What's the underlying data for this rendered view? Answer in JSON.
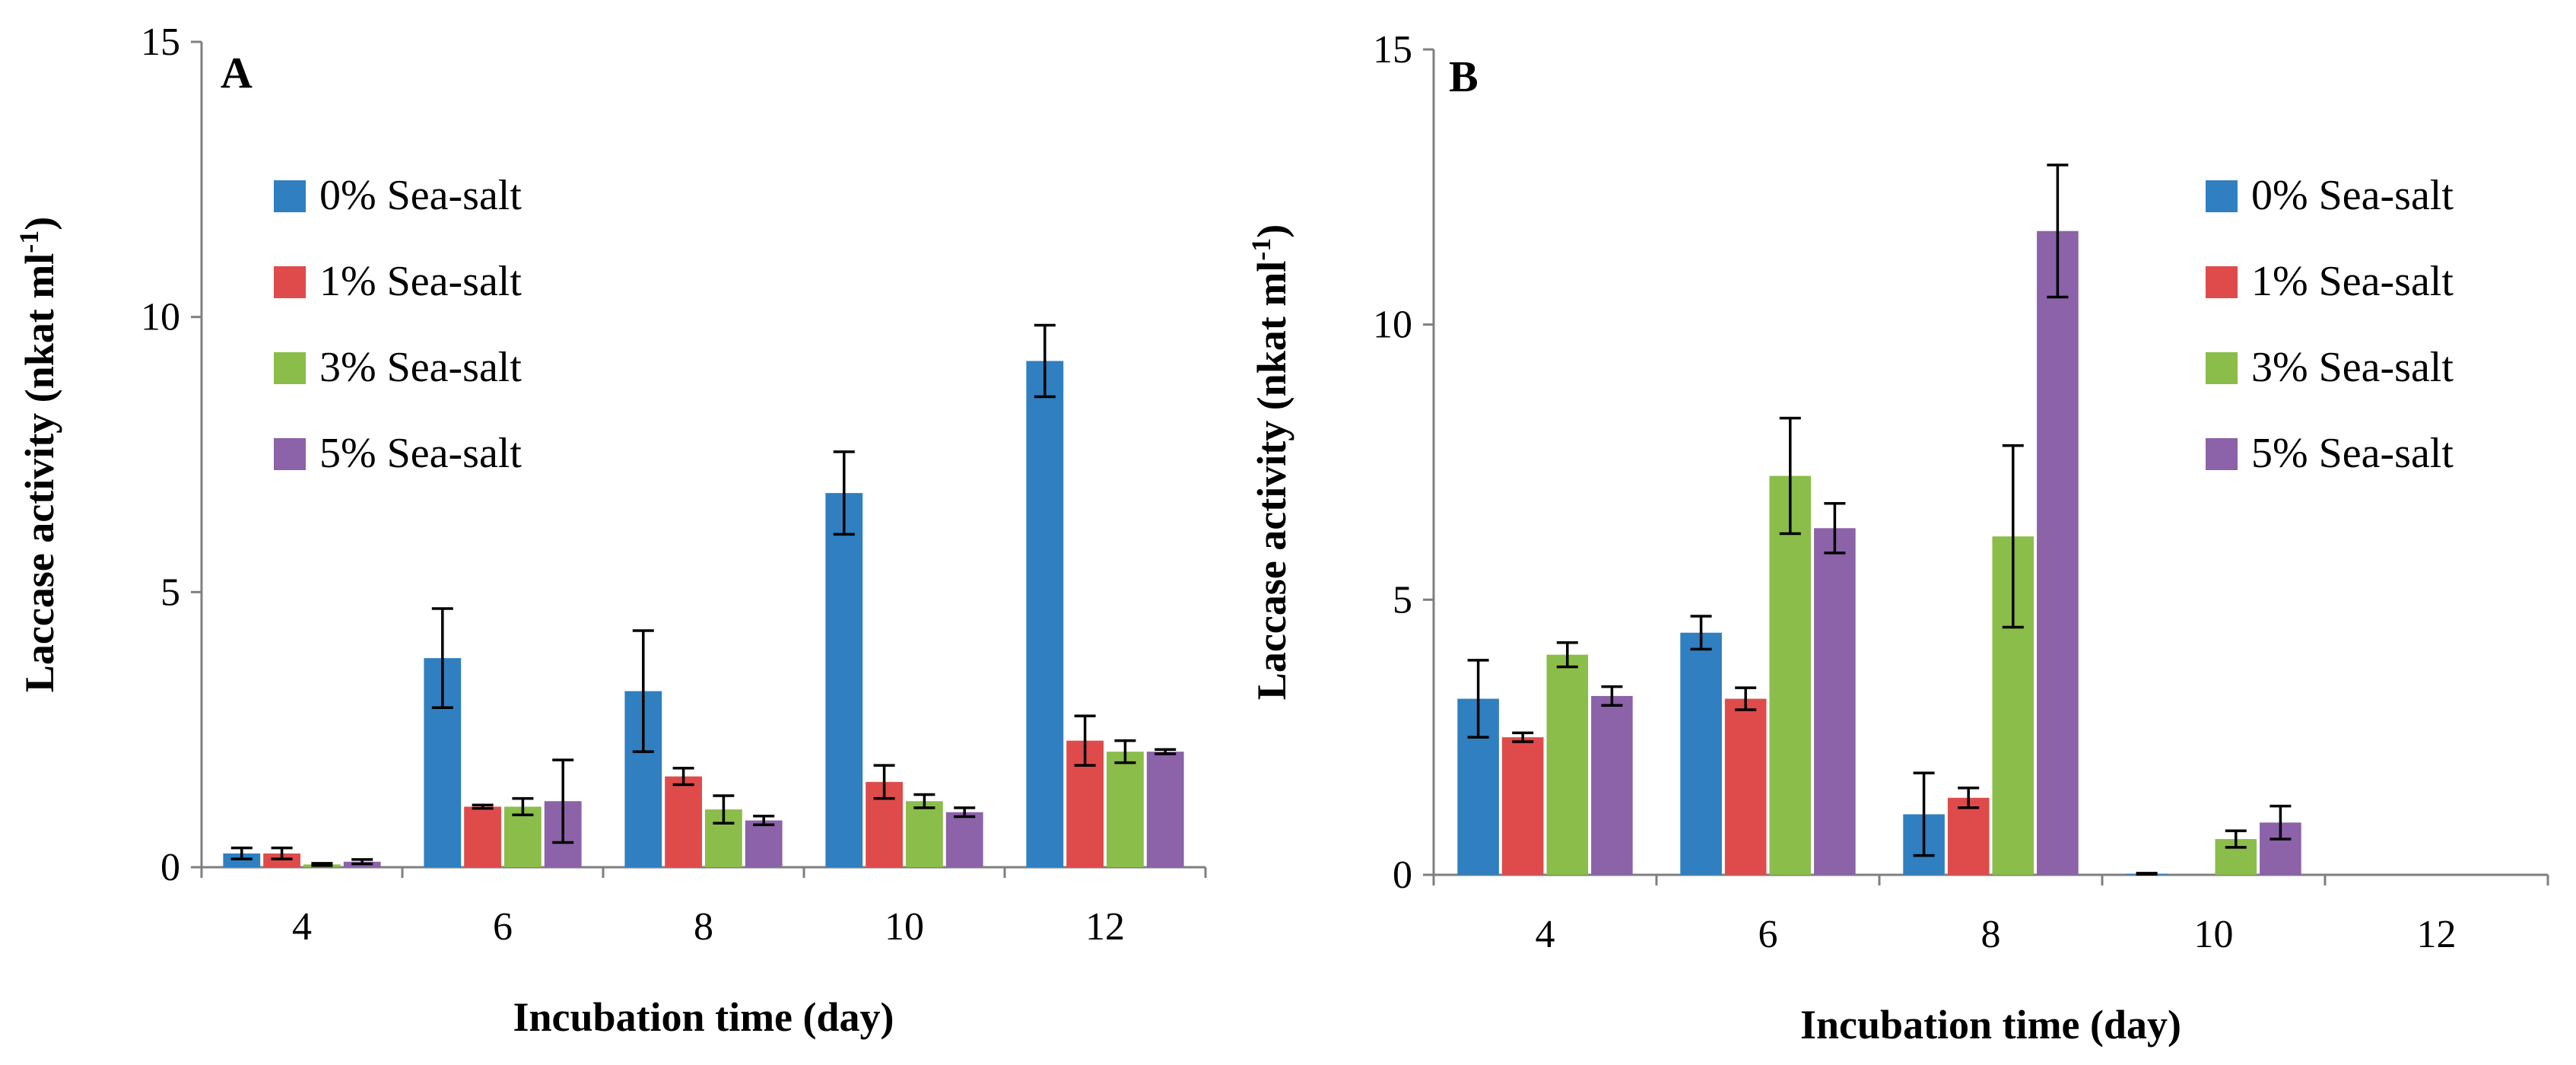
{
  "colors": {
    "s0": "#2f7fc1",
    "s1": "#df4b4b",
    "s3": "#8bbd4a",
    "s5": "#8c62a8",
    "axis": "#7f7f7f"
  },
  "chart_data": [
    {
      "type": "bar",
      "panel_label": "A",
      "categories": [
        "4",
        "6",
        "8",
        "10",
        "12"
      ],
      "xlabel": "Incubation time (day)",
      "ylabel_main": "Laccase activity (nkat ml",
      "ylabel_sup": "-1",
      "ylabel_close": ")",
      "ylim": [
        0,
        15
      ],
      "yticks": [
        "0",
        "5",
        "10",
        "15"
      ],
      "legend_position": "upper-left",
      "series": [
        {
          "name": "0% Sea-salt",
          "values": [
            0.25,
            3.8,
            3.2,
            6.8,
            9.2
          ],
          "errors": [
            0.1,
            0.9,
            1.1,
            0.75,
            0.65
          ]
        },
        {
          "name": "1% Sea-salt",
          "values": [
            0.25,
            1.1,
            1.65,
            1.55,
            2.3
          ],
          "errors": [
            0.1,
            0.03,
            0.15,
            0.3,
            0.45
          ]
        },
        {
          "name": "3% Sea-salt",
          "values": [
            0.05,
            1.1,
            1.05,
            1.2,
            2.1
          ],
          "errors": [
            0.02,
            0.15,
            0.25,
            0.12,
            0.2
          ]
        },
        {
          "name": "5% Sea-salt",
          "values": [
            0.1,
            1.2,
            0.85,
            1.0,
            2.1
          ],
          "errors": [
            0.04,
            0.75,
            0.08,
            0.08,
            0.04
          ]
        }
      ]
    },
    {
      "type": "bar",
      "panel_label": "B",
      "categories": [
        "4",
        "6",
        "8",
        "10",
        "12"
      ],
      "xlabel": "Incubation time (day)",
      "ylabel_main": "Laccase activity (nkat ml",
      "ylabel_sup": "-1",
      "ylabel_close": ")",
      "ylim": [
        0,
        15
      ],
      "yticks": [
        "0",
        "5",
        "10",
        "15"
      ],
      "legend_position": "upper-right",
      "series": [
        {
          "name": "0% Sea-salt",
          "values": [
            3.2,
            4.4,
            1.1,
            0.02,
            0
          ],
          "errors": [
            0.7,
            0.3,
            0.75,
            0.01,
            0
          ]
        },
        {
          "name": "1% Sea-salt",
          "values": [
            2.5,
            3.2,
            1.4,
            0,
            0
          ],
          "errors": [
            0.08,
            0.2,
            0.18,
            0,
            0
          ]
        },
        {
          "name": "3% Sea-salt",
          "values": [
            4.0,
            7.25,
            6.15,
            0.65,
            0
          ],
          "errors": [
            0.22,
            1.05,
            1.65,
            0.15,
            0
          ]
        },
        {
          "name": "5% Sea-salt",
          "values": [
            3.25,
            6.3,
            11.7,
            0.95,
            0
          ],
          "errors": [
            0.17,
            0.45,
            1.2,
            0.3,
            0
          ]
        }
      ]
    }
  ]
}
